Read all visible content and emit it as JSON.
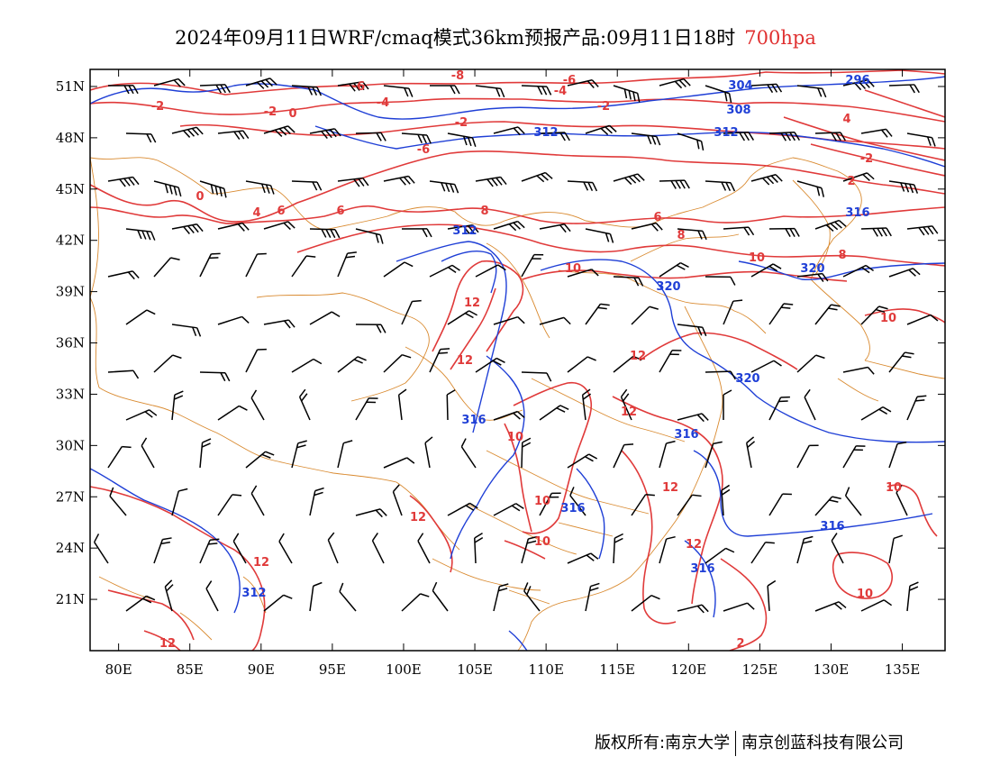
{
  "title": {
    "main": "2024年09月11日WRF/cmaq模式36km预报产品:09月11日18时",
    "level": "700hpa",
    "level_color": "#e03030"
  },
  "axes": {
    "lon_labels": [
      "80E",
      "85E",
      "90E",
      "95E",
      "100E",
      "105E",
      "110E",
      "115E",
      "120E",
      "125E",
      "130E",
      "135E"
    ],
    "lat_labels": [
      "51N",
      "48N",
      "45N",
      "42N",
      "39N",
      "36N",
      "33N",
      "30N",
      "27N",
      "24N",
      "21N"
    ],
    "lon_range": [
      78,
      138
    ],
    "lat_range": [
      18,
      52
    ]
  },
  "contours": {
    "temperature_color": "#e03a3a",
    "height_color": "#1f3fd6",
    "border_color": "#d98a30",
    "wind_color": "#000000",
    "temperature_labels": [
      "-6",
      "-4",
      "-2",
      "0",
      "2",
      "4",
      "6",
      "8",
      "10",
      "12",
      "-8",
      "-6",
      "-4",
      "-2",
      "0",
      "2",
      "6",
      "6",
      "8",
      "8",
      "10",
      "10",
      "10",
      "12",
      "12",
      "12",
      "12",
      "12",
      "10",
      "12",
      "12",
      "10",
      "10",
      "2",
      "-2",
      "0",
      "4"
    ],
    "height_labels": [
      "296",
      "304",
      "308",
      "312",
      "312",
      "316",
      "316",
      "316",
      "316",
      "320",
      "320",
      "320",
      "312",
      "316"
    ]
  },
  "credit": {
    "left": "版权所有:南京大学",
    "right": "南京创蓝科技有限公司"
  }
}
